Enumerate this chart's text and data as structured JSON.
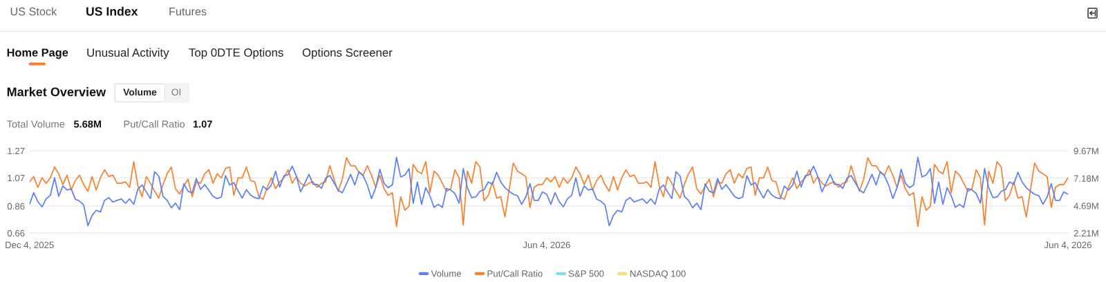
{
  "chart_data": {
    "type": "line",
    "title": "Market Overview",
    "annotations": [
      "US Stock",
      "US Index",
      "Futures",
      "Home Page",
      "Unusual Activity",
      "Top 0DTE Options",
      "Options Screener",
      "Volume",
      "OI",
      "Total Volume",
      "5.68M",
      "Put/Call Ratio",
      "1.07"
    ],
    "categories": [
      "Dec 4, 2025",
      null,
      null,
      null,
      null,
      null,
      null,
      null,
      null,
      null,
      null,
      null,
      null,
      null,
      null,
      null,
      null,
      null,
      null,
      null,
      null,
      null,
      null,
      null,
      null,
      null,
      null,
      null,
      null,
      null,
      null,
      null,
      null,
      null,
      null,
      null,
      null,
      null,
      null,
      null,
      null,
      null,
      null,
      null,
      null,
      null,
      null,
      null,
      null,
      null,
      null,
      null,
      null,
      null,
      null,
      null,
      null,
      null,
      null,
      null,
      null,
      null,
      null,
      null,
      null,
      null,
      null,
      null,
      null,
      null,
      null,
      null,
      null,
      null,
      null,
      null,
      null,
      null,
      null,
      null,
      null,
      null,
      null,
      null,
      null,
      null,
      null,
      null,
      null,
      null,
      null,
      null,
      null,
      null,
      null,
      null,
      null,
      null,
      null,
      null,
      null,
      null,
      null,
      null,
      null,
      null,
      null,
      null,
      null,
      null,
      null,
      null,
      null,
      null,
      null,
      null,
      null,
      null,
      null,
      null,
      null,
      null,
      null,
      null,
      "Jun 4, 2026",
      null,
      null,
      null,
      null,
      null,
      null,
      null,
      null,
      null,
      null,
      null,
      null,
      null,
      null,
      null,
      null,
      null,
      null,
      null,
      null,
      null,
      null,
      null,
      null,
      null,
      null,
      null,
      null,
      null,
      null,
      null,
      null,
      null,
      null,
      null,
      null,
      null,
      null,
      null,
      null,
      null,
      null,
      null,
      null,
      null,
      null,
      null,
      null,
      null,
      null,
      null,
      null,
      null,
      null,
      null,
      null,
      null,
      null,
      null,
      null,
      null,
      null,
      null,
      null,
      null,
      null,
      null,
      null,
      null,
      null,
      null,
      null,
      null,
      null,
      null,
      null,
      null,
      null,
      null,
      null,
      null,
      null,
      null,
      null,
      null,
      null,
      null,
      null,
      null,
      null,
      null,
      null,
      null,
      null,
      null,
      null,
      null,
      null,
      null,
      null,
      null,
      null,
      null,
      null,
      null,
      null,
      null,
      null,
      null,
      null,
      null,
      null,
      null,
      null,
      null,
      null,
      null,
      null,
      null,
      null,
      null,
      null,
      null,
      null,
      "Jun 4, 2026"
    ],
    "series": [
      {
        "name": "Volume",
        "color": "#5a7ff7",
        "axis": "y2",
        "values": [
          4.82,
          5.87,
          5.07,
          4.59,
          5.32,
          5.64,
          7.23,
          5.55,
          6.49,
          6.12,
          6.22,
          5.28,
          5.11,
          4.76,
          2.88,
          3.82,
          4.28,
          4.13,
          5.18,
          5.43,
          5.03,
          5.18,
          5.32,
          4.91,
          5.32,
          4.82,
          6.22,
          6.58,
          5.95,
          5.34,
          7.79,
          7.37,
          5.55,
          5.18,
          4.51,
          4.93,
          4.34,
          6.68,
          6.01,
          5.87,
          7.16,
          6.18,
          6.62,
          6.08,
          5.55,
          5.34,
          5.49,
          7.43,
          6.58,
          6.79,
          6.05,
          5.39,
          6.16,
          5.66,
          5.43,
          5.32,
          6.47,
          6.12,
          6.58,
          7.83,
          6.39,
          7.41,
          7.52,
          8.29,
          7.37,
          5.95,
          6.74,
          7.54,
          6.64,
          6.62,
          6.26,
          7.2,
          7.43,
          6.79,
          6.12,
          5.87,
          6.68,
          7.54,
          6.58,
          7.79,
          7.41,
          6.58,
          5.34,
          6.33,
          8.0,
          6.74,
          6.33,
          6.58,
          9.08,
          7.31,
          7.48,
          8.06,
          4.91,
          6.85,
          4.82,
          6.33,
          5.6,
          4.55,
          4.82,
          4.55,
          6.26,
          6.12,
          5.8,
          4.93,
          8.06,
          6.33,
          5.43,
          5.49,
          6.01,
          6.16,
          6.85,
          6.64,
          7.73,
          6.85,
          6.33,
          6.01,
          5.74,
          5.6,
          4.82,
          5.49,
          6.7,
          5.18,
          5.18,
          5.95,
          5.74,
          4.82,
          5.87,
          5.07,
          4.59,
          5.32,
          5.64,
          7.23,
          5.55,
          6.49,
          6.12,
          6.22,
          5.28,
          5.11,
          4.76,
          2.88,
          3.82,
          4.28,
          4.13,
          5.18,
          5.43,
          5.03,
          5.18,
          5.32,
          4.91,
          5.32,
          4.82,
          6.22,
          6.58,
          5.95,
          5.34,
          7.79,
          7.37,
          5.55,
          5.18,
          4.51,
          4.93,
          4.34,
          6.68,
          6.01,
          5.87,
          7.16,
          6.18,
          6.62,
          6.08,
          5.55,
          5.34,
          5.49,
          7.43,
          6.58,
          6.79,
          6.05,
          5.39,
          6.16,
          5.66,
          5.43,
          5.32,
          6.47,
          6.12,
          6.58,
          7.83,
          6.39,
          7.41,
          7.52,
          8.29,
          7.37,
          5.95,
          6.74,
          7.54,
          6.64,
          6.62,
          6.26,
          7.2,
          7.43,
          6.79,
          6.12,
          5.87,
          6.68,
          7.54,
          6.58,
          7.79,
          7.41,
          6.58,
          5.34,
          6.33,
          8.0,
          6.74,
          6.33,
          6.58,
          9.08,
          7.31,
          7.48,
          8.06,
          4.91,
          6.85,
          4.82,
          6.33,
          5.6,
          4.55,
          4.82,
          4.55,
          6.26,
          6.12,
          5.8,
          4.93,
          8.06,
          6.33,
          5.43,
          5.49,
          6.01,
          6.16,
          6.85,
          6.64,
          7.73,
          6.85,
          6.33,
          6.01,
          5.74,
          5.6,
          4.82,
          5.49,
          6.7,
          5.18,
          5.18,
          5.95,
          5.74
        ]
      },
      {
        "name": "Put/Call Ratio",
        "color": "#f7812d",
        "values": [
          1.04,
          1.08,
          1.0,
          1.07,
          1.03,
          1.07,
          1.15,
          1.1,
          1.02,
          1.09,
          0.98,
          1.05,
          1.09,
          1.02,
          0.97,
          1.08,
          0.98,
          1.07,
          1.13,
          1.08,
          1.09,
          1.03,
          1.03,
          1.04,
          1.0,
          1.19,
          1.01,
          0.93,
          1.08,
          1.03,
          0.97,
          0.92,
          1.02,
          1.1,
          1.15,
          0.99,
          0.95,
          1.01,
          1.06,
          0.93,
          1.04,
          1.03,
          1.1,
          1.13,
          1.03,
          1.1,
          1.07,
          1.14,
          1.15,
          0.94,
          1.07,
          1.07,
          1.15,
          1.05,
          1.04,
          0.93,
          0.91,
          1.0,
          1.07,
          0.99,
          1.04,
          1.07,
          1.13,
          1.03,
          1.08,
          1.03,
          1.01,
          1.03,
          1.04,
          1.0,
          1.03,
          1.04,
          1.16,
          1.06,
          0.97,
          1.06,
          1.22,
          1.16,
          1.16,
          1.11,
          1.09,
          1.16,
          1.09,
          1.0,
          1.09,
          0.99,
          0.94,
          0.96,
          0.71,
          0.93,
          0.83,
          0.86,
          1.17,
          1.12,
          1.1,
          1.19,
          0.96,
          1.12,
          1.09,
          1.03,
          0.97,
          0.99,
          1.13,
          1.07,
          0.72,
          1.12,
          1.03,
          1.19,
          1.15,
          0.9,
          0.94,
          1.04,
          0.92,
          0.93,
          0.78,
          0.98,
          1.18,
          1.12,
          1.1,
          1.08,
          0.85,
          1.0,
          1.02,
          1.02,
          1.07,
          1.04,
          1.08,
          1.0,
          1.07,
          1.03,
          1.07,
          1.15,
          1.1,
          1.02,
          1.09,
          0.98,
          1.05,
          1.09,
          1.02,
          0.97,
          1.08,
          0.98,
          1.07,
          1.13,
          1.08,
          1.09,
          1.03,
          1.03,
          1.04,
          1.0,
          1.19,
          1.01,
          0.93,
          1.08,
          1.03,
          0.97,
          0.92,
          1.02,
          1.1,
          1.15,
          0.99,
          0.95,
          1.01,
          1.06,
          0.93,
          1.04,
          1.03,
          1.1,
          1.13,
          1.03,
          1.1,
          1.07,
          1.14,
          1.15,
          0.94,
          1.07,
          1.07,
          1.15,
          1.05,
          1.04,
          0.93,
          0.91,
          1.0,
          1.07,
          0.99,
          1.04,
          1.07,
          1.13,
          1.03,
          1.08,
          1.03,
          1.01,
          1.03,
          1.04,
          1.0,
          1.03,
          1.04,
          1.16,
          1.06,
          0.97,
          1.06,
          1.22,
          1.16,
          1.16,
          1.11,
          1.09,
          1.16,
          1.09,
          1.0,
          1.09,
          0.99,
          0.94,
          0.96,
          0.71,
          0.93,
          0.83,
          0.86,
          1.17,
          1.12,
          1.1,
          1.19,
          0.96,
          1.12,
          1.09,
          1.03,
          0.97,
          0.99,
          1.13,
          1.07,
          0.72,
          1.12,
          1.03,
          1.19,
          1.15,
          0.9,
          0.94,
          1.04,
          0.92,
          0.93,
          0.78,
          0.98,
          1.18,
          1.12,
          1.1,
          1.08,
          0.85,
          1.0,
          1.02,
          1.02,
          1.07
        ]
      },
      {
        "name": "S&P 500",
        "color": "#7ddfe8",
        "values": [
          null,
          null,
          null,
          null,
          null,
          null,
          null,
          null,
          null,
          null,
          null,
          null,
          null,
          null,
          null,
          null,
          null,
          null,
          null,
          null,
          null,
          null,
          null,
          null,
          null,
          null,
          null,
          null,
          null,
          null,
          null,
          null,
          null,
          null,
          null,
          null,
          null,
          null,
          null,
          null,
          null,
          null,
          null,
          null,
          null,
          null,
          null,
          null,
          null,
          null,
          null,
          null,
          null,
          null,
          null,
          null,
          null,
          null,
          null,
          null,
          null,
          null,
          null,
          null,
          null,
          null,
          null,
          null,
          null,
          null,
          null,
          null,
          null,
          null,
          null,
          null,
          null,
          null,
          null,
          null,
          null,
          null,
          null,
          null,
          null,
          null,
          null,
          null,
          null,
          null,
          null,
          null,
          null,
          null,
          null,
          null,
          null,
          null,
          null,
          null,
          null,
          null,
          null,
          null,
          null,
          null,
          null,
          null,
          null,
          null,
          null,
          null,
          null,
          null,
          null,
          null,
          null,
          null,
          null,
          null,
          null,
          null,
          null,
          null,
          null,
          null,
          null,
          null,
          null,
          null,
          null,
          null,
          null,
          null,
          null,
          null,
          null,
          null,
          null,
          null,
          null,
          null,
          null,
          null,
          null,
          null,
          null,
          null,
          null,
          null,
          null,
          null,
          null,
          null,
          null,
          null,
          null,
          null,
          null,
          null,
          null,
          null,
          null,
          null,
          null,
          null,
          null,
          null,
          null,
          null,
          null,
          null,
          null,
          null,
          null,
          null,
          null,
          null,
          null,
          null,
          null,
          null,
          null,
          null,
          null,
          null,
          null,
          null,
          null,
          null,
          null,
          null,
          null,
          null,
          null,
          null,
          null,
          null,
          null,
          null,
          null,
          null,
          null,
          null,
          null,
          null,
          null,
          null,
          null,
          null,
          null,
          null,
          null,
          null,
          null,
          null,
          null,
          null,
          null,
          null,
          null,
          null,
          null,
          null,
          null,
          null,
          null,
          null,
          null,
          null,
          null,
          null,
          null,
          null,
          null,
          null,
          null,
          null,
          null,
          null,
          null,
          null,
          null,
          null,
          null,
          null,
          null,
          null,
          null,
          null
        ]
      },
      {
        "name": "NASDAQ 100",
        "color": "#f6dc7d",
        "values": [
          null,
          null,
          null,
          null,
          null,
          null,
          null,
          null,
          null,
          null,
          null,
          null,
          null,
          null,
          null,
          null,
          null,
          null,
          null,
          null,
          null,
          null,
          null,
          null,
          null,
          null,
          null,
          null,
          null,
          null,
          null,
          null,
          null,
          null,
          null,
          null,
          null,
          null,
          null,
          null,
          null,
          null,
          null,
          null,
          null,
          null,
          null,
          null,
          null,
          null,
          null,
          null,
          null,
          null,
          null,
          null,
          null,
          null,
          null,
          null,
          null,
          null,
          null,
          null,
          null,
          null,
          null,
          null,
          null,
          null,
          null,
          null,
          null,
          null,
          null,
          null,
          null,
          null,
          null,
          null,
          null,
          null,
          null,
          null,
          null,
          null,
          null,
          null,
          null,
          null,
          null,
          null,
          null,
          null,
          null,
          null,
          null,
          null,
          null,
          null,
          null,
          null,
          null,
          null,
          null,
          null,
          null,
          null,
          null,
          null,
          null,
          null,
          null,
          null,
          null,
          null,
          null,
          null,
          null,
          null,
          null,
          null,
          null,
          null,
          null,
          null,
          null,
          null,
          null,
          null,
          null,
          null,
          null,
          null,
          null,
          null,
          null,
          null,
          null,
          null,
          null,
          null,
          null,
          null,
          null,
          null,
          null,
          null,
          null,
          null,
          null,
          null,
          null,
          null,
          null,
          null,
          null,
          null,
          null,
          null,
          null,
          null,
          null,
          null,
          null,
          null,
          null,
          null,
          null,
          null,
          null,
          null,
          null,
          null,
          null,
          null,
          null,
          null,
          null,
          null,
          null,
          null,
          null,
          null,
          null,
          null,
          null,
          null,
          null,
          null,
          null,
          null,
          null,
          null,
          null,
          null,
          null,
          null,
          null,
          null,
          null,
          null,
          null,
          null,
          null,
          null,
          null,
          null,
          null,
          null,
          null,
          null,
          null,
          null,
          null,
          null,
          null,
          null,
          null,
          null,
          null,
          null,
          null,
          null,
          null,
          null,
          null,
          null,
          null,
          null,
          null,
          null,
          null,
          null,
          null,
          null,
          null,
          null,
          null,
          null,
          null,
          null,
          null,
          null,
          null,
          null,
          null,
          null,
          null,
          null
        ]
      }
    ],
    "ylim": [
      0.66,
      1.27
    ],
    "yticks": [
      0.66,
      0.86,
      1.07,
      1.27
    ],
    "y2lim": [
      2.21,
      9.67
    ],
    "y2ticks": [
      {
        "value": 2.21,
        "label": "2.21M"
      },
      {
        "value": 4.69,
        "label": "4.69M"
      },
      {
        "value": 7.18,
        "label": "7.18M"
      },
      {
        "value": 9.67,
        "label": "9.67M"
      }
    ],
    "grid": "y",
    "legend": "bottom"
  }
}
